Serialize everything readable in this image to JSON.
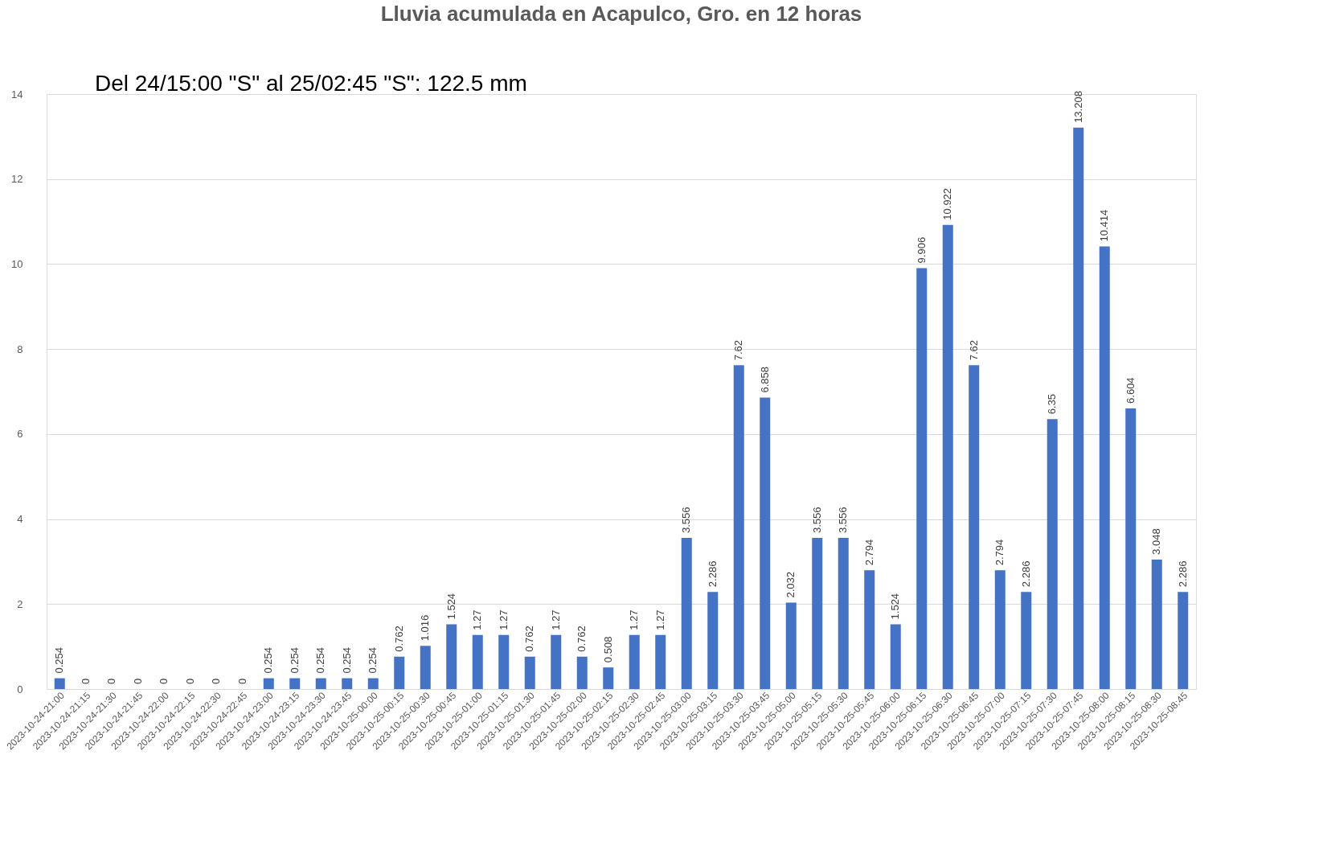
{
  "chart_data": {
    "type": "bar",
    "title": "Lluvia acumulada en Acapulco, Gro. en 12 horas",
    "annotations": [
      "Del 24/15:00 \"S\" al 25/02:45 \"S\": 122.5 mm"
    ],
    "categories": [
      "2023-10-24-21:00",
      "2023-10-24-21:15",
      "2023-10-24-21:30",
      "2023-10-24-21:45",
      "2023-10-24-22:00",
      "2023-10-24-22:15",
      "2023-10-24-22:30",
      "2023-10-24-22:45",
      "2023-10-24-23:00",
      "2023-10-24-23:15",
      "2023-10-24-23:30",
      "2023-10-24-23:45",
      "2023-10-25-00:00",
      "2023-10-25-00:15",
      "2023-10-25-00:30",
      "2023-10-25-00:45",
      "2023-10-25-01:00",
      "2023-10-25-01:15",
      "2023-10-25-01:30",
      "2023-10-25-01:45",
      "2023-10-25-02:00",
      "2023-10-25-02:15",
      "2023-10-25-02:30",
      "2023-10-25-02:45",
      "2023-10-25-03:00",
      "2023-10-25-03:15",
      "2023-10-25-03:30",
      "2023-10-25-03:45",
      "2023-10-25-05:00",
      "2023-10-25-05:15",
      "2023-10-25-05:30",
      "2023-10-25-05:45",
      "2023-10-25-06:00",
      "2023-10-25-06:15",
      "2023-10-25-06:30",
      "2023-10-25-06:45",
      "2023-10-25-07:00",
      "2023-10-25-07:15",
      "2023-10-25-07:30",
      "2023-10-25-07:45",
      "2023-10-25-08:00",
      "2023-10-25-08:15",
      "2023-10-25-08:30",
      "2023-10-25-08:45"
    ],
    "values": [
      0.254,
      0,
      0,
      0,
      0,
      0,
      0,
      0,
      0.254,
      0.254,
      0.254,
      0.254,
      0.254,
      0.762,
      1.016,
      1.524,
      1.27,
      1.27,
      0.762,
      1.27,
      0.762,
      0.508,
      1.27,
      1.27,
      3.556,
      2.286,
      7.62,
      6.858,
      2.032,
      3.556,
      3.556,
      2.794,
      1.524,
      9.906,
      10.922,
      7.62,
      2.794,
      2.286,
      6.35,
      13.208,
      10.414,
      6.604,
      3.048,
      2.286
    ],
    "color": "#4472c4",
    "ylim": [
      0,
      14
    ],
    "yticks": [
      0,
      2,
      4,
      6,
      8,
      10,
      12,
      14
    ],
    "grid": "y",
    "data_labels": true
  }
}
